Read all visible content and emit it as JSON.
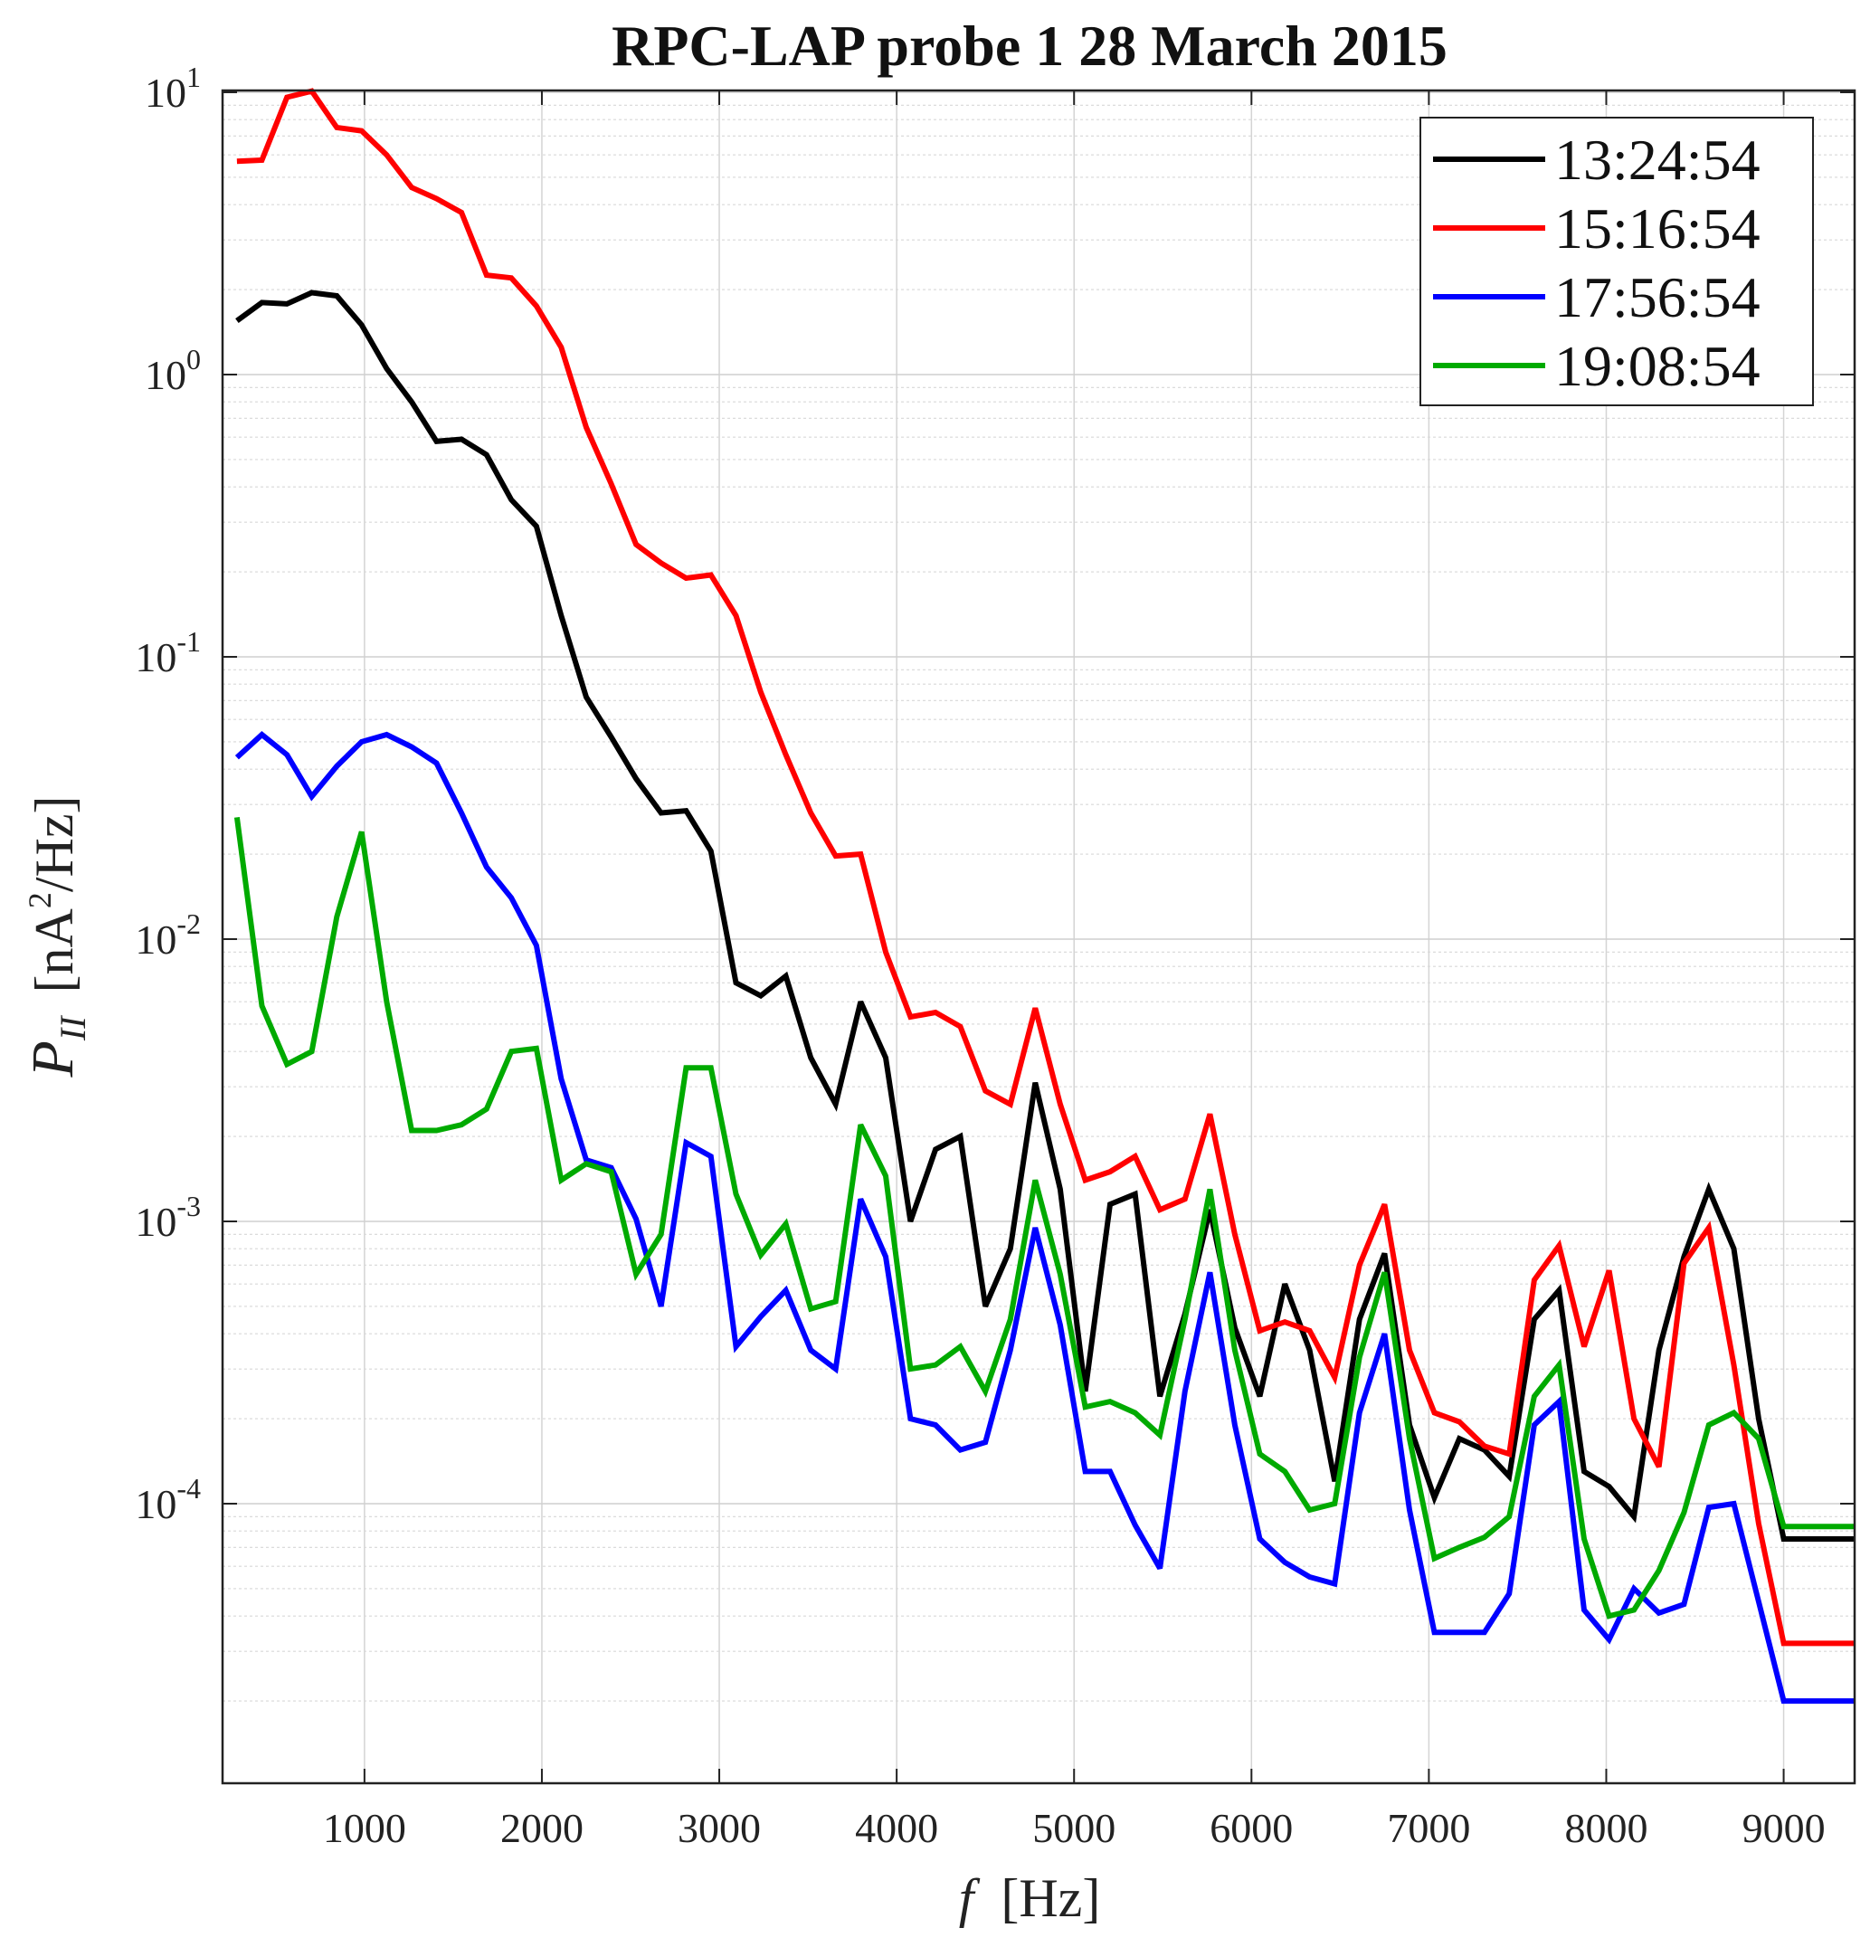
{
  "chart_data": {
    "type": "line",
    "title": "RPC-LAP   probe 1   28 March 2015",
    "xlabel_var": "f",
    "xlabel_unit": "[Hz]",
    "ylabel_var": "P",
    "ylabel_sub": "II",
    "ylabel_unit_pre": "[nA",
    "ylabel_unit_sup": "2",
    "ylabel_unit_post": "/Hz]",
    "xlim": [
      200,
      9400
    ],
    "ylim": [
      1e-05,
      10.5
    ],
    "yscale": "log",
    "grid": true,
    "legend_position": "top-right",
    "x_ticks": [
      {
        "value": 1000,
        "label": "1000"
      },
      {
        "value": 2000,
        "label": "2000"
      },
      {
        "value": 3000,
        "label": "3000"
      },
      {
        "value": 4000,
        "label": "4000"
      },
      {
        "value": 5000,
        "label": "5000"
      },
      {
        "value": 6000,
        "label": "6000"
      },
      {
        "value": 7000,
        "label": "7000"
      },
      {
        "value": 8000,
        "label": "8000"
      },
      {
        "value": 9000,
        "label": "9000"
      }
    ],
    "y_ticks": [
      {
        "value": 10,
        "base": "10",
        "exp": "1"
      },
      {
        "value": 1,
        "base": "10",
        "exp": "0"
      },
      {
        "value": 0.1,
        "base": "10",
        "exp": "-1"
      },
      {
        "value": 0.01,
        "base": "10",
        "exp": "-2"
      },
      {
        "value": 0.001,
        "base": "10",
        "exp": "-3"
      },
      {
        "value": 0.0001,
        "base": "10",
        "exp": "-4"
      }
    ],
    "x": [
      281,
      422,
      563,
      703,
      844,
      984,
      1125,
      1266,
      1406,
      1547,
      1688,
      1828,
      1969,
      2109,
      2250,
      2391,
      2531,
      2672,
      2813,
      2953,
      3094,
      3234,
      3375,
      3516,
      3656,
      3797,
      3938,
      4078,
      4219,
      4359,
      4500,
      4641,
      4781,
      4922,
      5063,
      5203,
      5344,
      5484,
      5625,
      5766,
      5906,
      6047,
      6188,
      6328,
      6469,
      6609,
      6750,
      6891,
      7031,
      7172,
      7313,
      7453,
      7594,
      7734,
      7875,
      8016,
      8156,
      8297,
      8438,
      8578,
      8719,
      8859,
      9000,
      9141,
      9281,
      9400
    ],
    "series": [
      {
        "name": "13:24:54",
        "color": "#000000",
        "values": [
          1.55,
          1.8,
          1.78,
          1.95,
          1.9,
          1.5,
          1.05,
          0.8,
          0.58,
          0.59,
          0.52,
          0.36,
          0.29,
          0.14,
          0.072,
          0.052,
          0.037,
          0.028,
          0.0285,
          0.0205,
          0.007,
          0.0063,
          0.0074,
          0.0038,
          0.0026,
          0.006,
          0.0038,
          0.001,
          0.0018,
          0.002,
          0.0005,
          0.0008,
          0.0031,
          0.0013,
          0.00025,
          0.00115,
          0.00125,
          0.00024,
          0.00047,
          0.0011,
          0.00042,
          0.00024,
          0.0006,
          0.00035,
          0.00012,
          0.00045,
          0.00077,
          0.00019,
          0.000105,
          0.00017,
          0.000155,
          0.000125,
          0.00045,
          0.00057,
          0.00013,
          0.000115,
          9e-05,
          0.00035,
          0.00075,
          0.0013,
          0.0008,
          0.0002,
          7.5e-05,
          7.5e-05,
          7.5e-05,
          7.5e-05
        ]
      },
      {
        "name": "15:16:54",
        "color": "#ff0000",
        "values": [
          5.7,
          5.75,
          9.6,
          10.1,
          7.5,
          7.3,
          6.0,
          4.6,
          4.2,
          3.75,
          2.25,
          2.2,
          1.75,
          1.25,
          0.65,
          0.41,
          0.25,
          0.215,
          0.19,
          0.195,
          0.14,
          0.075,
          0.045,
          0.028,
          0.0197,
          0.02,
          0.009,
          0.0053,
          0.0055,
          0.0049,
          0.0029,
          0.0026,
          0.0057,
          0.0026,
          0.0014,
          0.0015,
          0.0017,
          0.0011,
          0.0012,
          0.0024,
          0.0009,
          0.00041,
          0.00044,
          0.00041,
          0.00028,
          0.0007,
          0.00115,
          0.00035,
          0.00021,
          0.000195,
          0.00016,
          0.00015,
          0.00062,
          0.00082,
          0.00036,
          0.00067,
          0.0002,
          0.000135,
          0.00071,
          0.00095,
          0.00031,
          8.5e-05,
          3.2e-05,
          3.2e-05,
          3.2e-05,
          3.2e-05
        ]
      },
      {
        "name": "17:56:54",
        "color": "#0000ff",
        "values": [
          0.044,
          0.053,
          0.045,
          0.032,
          0.041,
          0.05,
          0.053,
          0.048,
          0.042,
          0.028,
          0.018,
          0.014,
          0.0095,
          0.0032,
          0.00165,
          0.00155,
          0.00102,
          0.0005,
          0.0019,
          0.0017,
          0.00036,
          0.00046,
          0.00057,
          0.00035,
          0.0003,
          0.0012,
          0.00075,
          0.0002,
          0.00019,
          0.000155,
          0.000165,
          0.00035,
          0.00095,
          0.00043,
          0.00013,
          0.00013,
          8.4e-05,
          5.9e-05,
          0.00025,
          0.00066,
          0.00019,
          7.5e-05,
          6.2e-05,
          5.5e-05,
          5.2e-05,
          0.00021,
          0.0004,
          9.5e-05,
          3.5e-05,
          3.5e-05,
          3.5e-05,
          4.8e-05,
          0.00019,
          0.00023,
          4.2e-05,
          3.3e-05,
          5e-05,
          4.1e-05,
          4.4e-05,
          9.7e-05,
          0.0001,
          4.5e-05,
          2e-05,
          2e-05,
          2e-05,
          2e-05
        ]
      },
      {
        "name": "19:08:54",
        "color": "#00aa00",
        "values": [
          0.027,
          0.0058,
          0.0036,
          0.004,
          0.012,
          0.024,
          0.006,
          0.0021,
          0.0021,
          0.0022,
          0.0025,
          0.004,
          0.0041,
          0.0014,
          0.0016,
          0.0015,
          0.00065,
          0.0009,
          0.0035,
          0.0035,
          0.00125,
          0.00076,
          0.00098,
          0.00049,
          0.00052,
          0.0022,
          0.00145,
          0.0003,
          0.00031,
          0.00036,
          0.00025,
          0.00045,
          0.0014,
          0.00065,
          0.00022,
          0.00023,
          0.00021,
          0.000175,
          0.00045,
          0.0013,
          0.00035,
          0.00015,
          0.00013,
          9.5e-05,
          0.0001,
          0.00033,
          0.00066,
          0.00017,
          6.4e-05,
          7e-05,
          7.6e-05,
          9e-05,
          0.00024,
          0.00031,
          7.5e-05,
          4e-05,
          4.2e-05,
          5.8e-05,
          9.3e-05,
          0.00019,
          0.00021,
          0.00017,
          8.3e-05,
          8.3e-05,
          8.3e-05,
          8.3e-05
        ]
      }
    ]
  }
}
